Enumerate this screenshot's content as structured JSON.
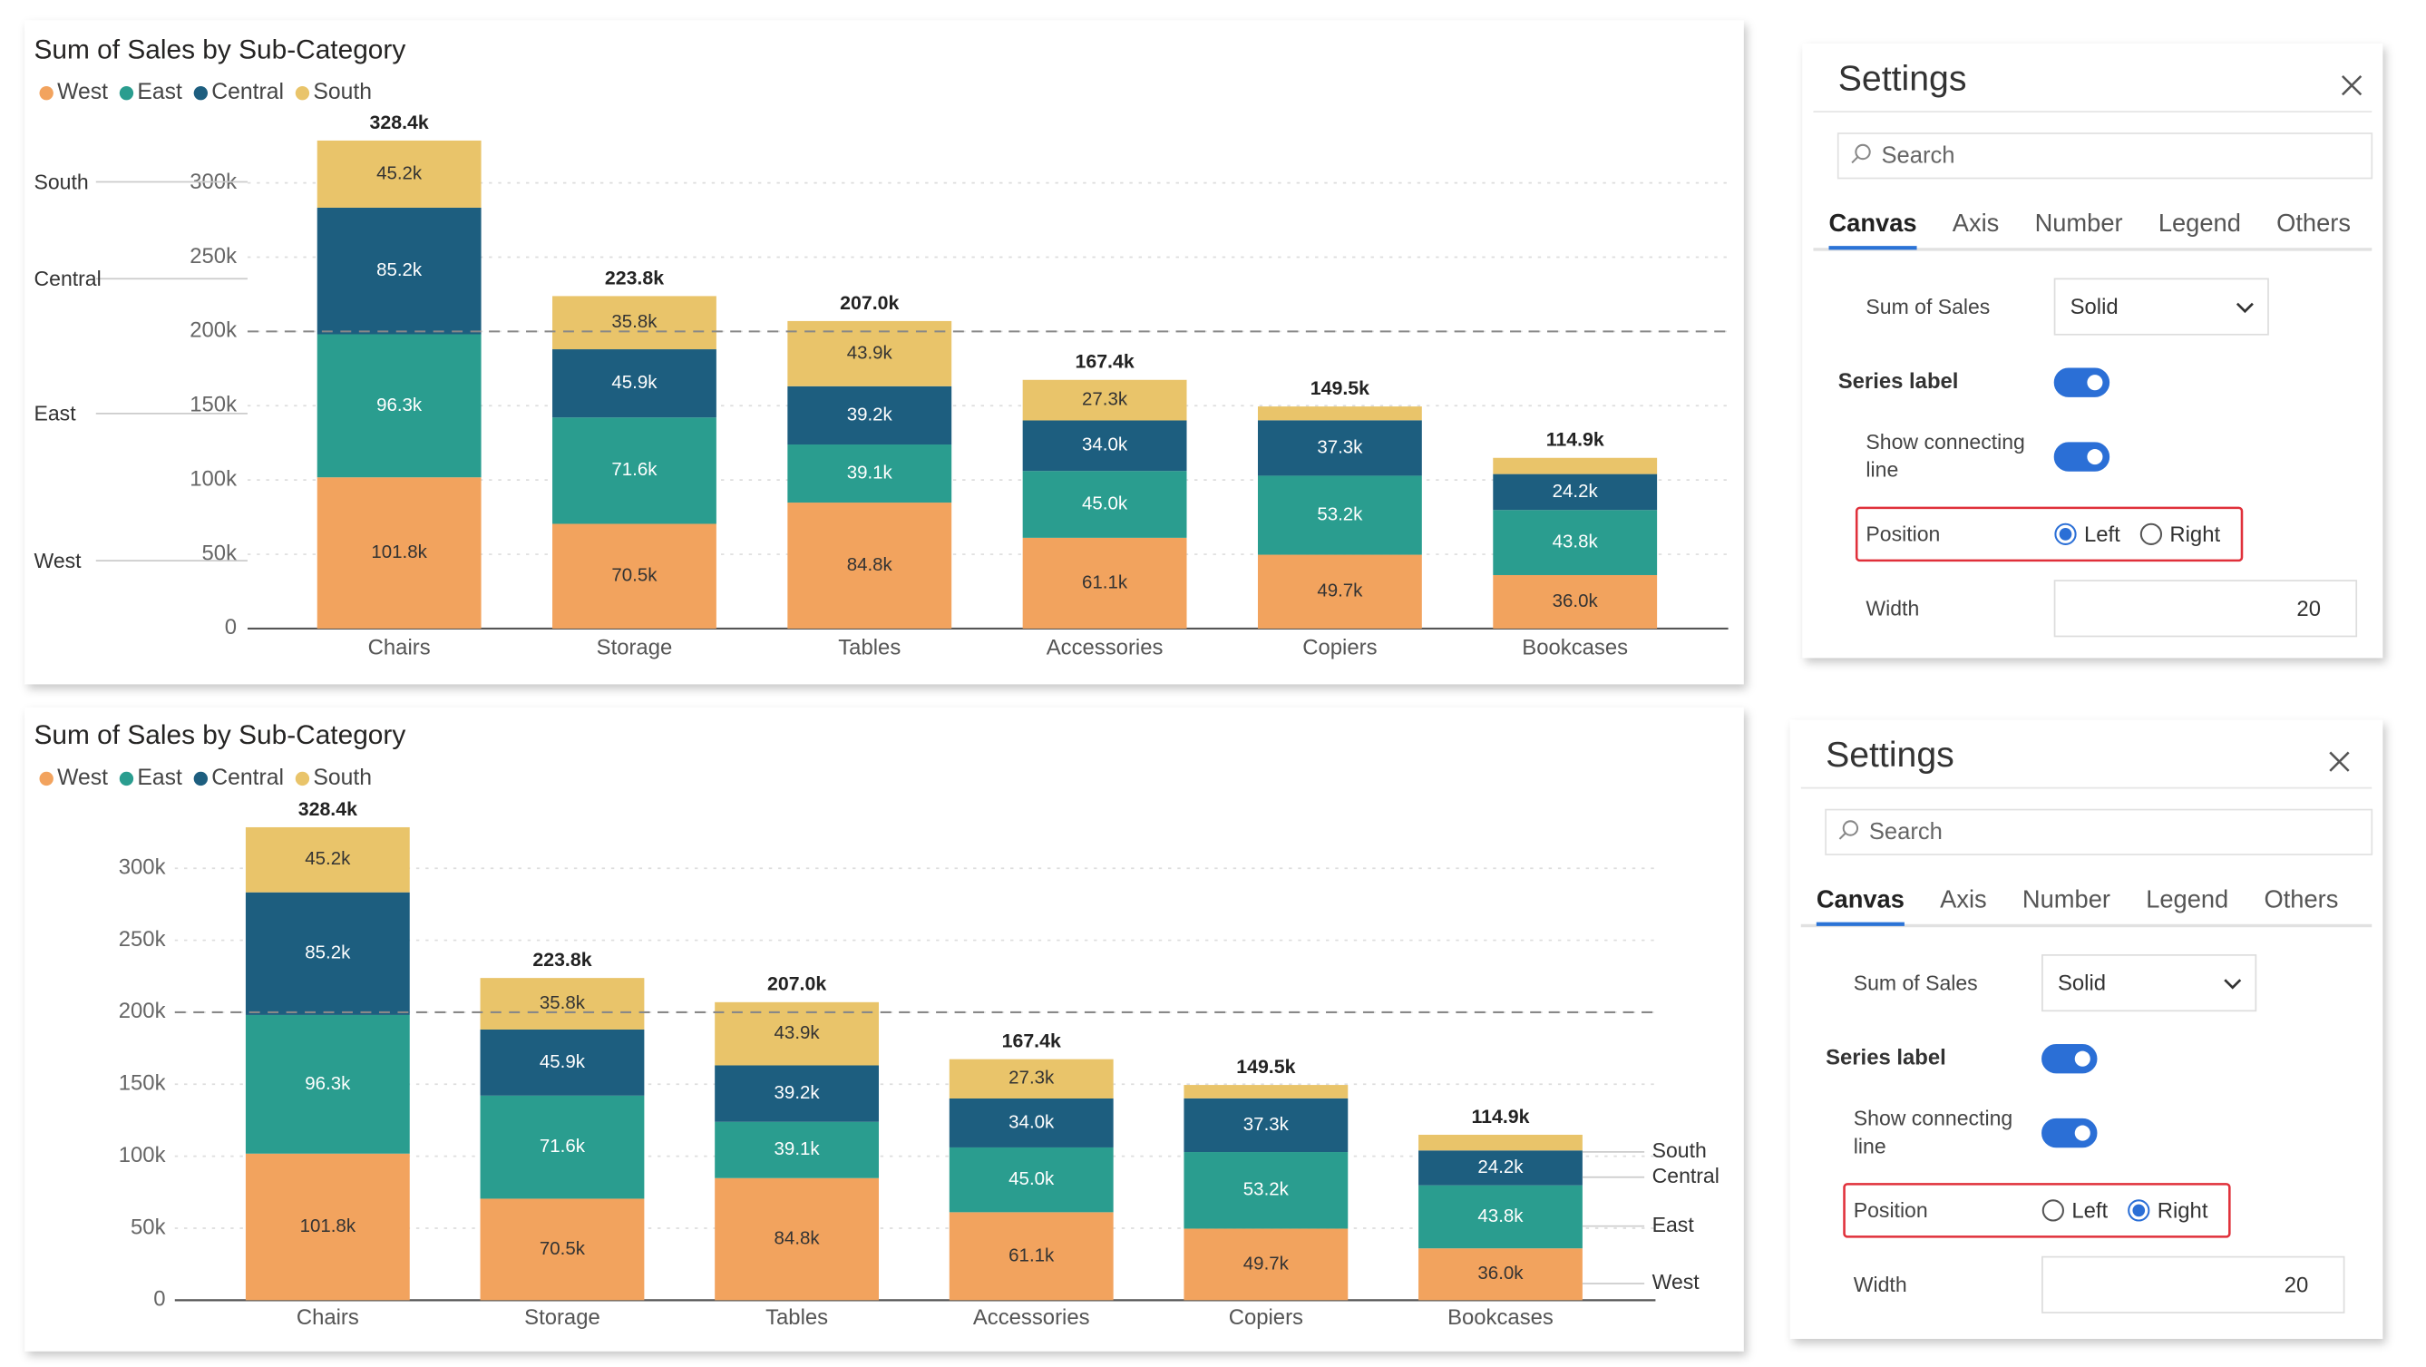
{
  "chart_data": [
    {
      "type": "bar",
      "stacked": true,
      "title": "Sum of Sales by Sub-Category",
      "categories": [
        "Chairs",
        "Storage",
        "Tables",
        "Accessories",
        "Copiers",
        "Bookcases"
      ],
      "series": [
        {
          "name": "West",
          "color": "#f2a35e",
          "values": [
            101800,
            70500,
            84800,
            61100,
            49700,
            36000
          ],
          "value_labels": [
            "101.8k",
            "70.5k",
            "84.8k",
            "61.1k",
            "49.7k",
            "36.0k"
          ]
        },
        {
          "name": "East",
          "color": "#2a9d8f",
          "values": [
            96300,
            71600,
            39100,
            45000,
            53200,
            43800
          ],
          "value_labels": [
            "96.3k",
            "71.6k",
            "39.1k",
            "45.0k",
            "53.2k",
            "43.8k"
          ]
        },
        {
          "name": "Central",
          "color": "#1d5e7f",
          "values": [
            85200,
            45900,
            39200,
            34000,
            37300,
            24200
          ],
          "value_labels": [
            "85.2k",
            "45.9k",
            "39.2k",
            "34.0k",
            "37.3k",
            "24.2k"
          ]
        },
        {
          "name": "South",
          "color": "#e9c46a",
          "values": [
            45200,
            35800,
            43900,
            27300,
            9300,
            10900
          ],
          "value_labels": [
            "45.2k",
            "35.8k",
            "43.9k",
            "27.3k",
            "",
            ""
          ]
        }
      ],
      "totals": [
        328400,
        223800,
        207000,
        167400,
        149500,
        114900
      ],
      "total_labels": [
        "328.4k",
        "223.8k",
        "207.0k",
        "167.4k",
        "149.5k",
        "114.9k"
      ],
      "ylim": [
        0,
        330000
      ],
      "yticks": [
        0,
        {
          "value": 50000,
          "label": "50k"
        },
        {
          "value": 100000,
          "label": "100k"
        },
        {
          "value": 150000,
          "label": "150k"
        },
        {
          "value": 200000,
          "label": "200k"
        },
        {
          "value": 250000,
          "label": "250k"
        },
        {
          "value": 300000,
          "label": "300k"
        }
      ],
      "reference_line": 200000,
      "grid": true,
      "legend": "top-left",
      "series_label_position": "left"
    },
    {
      "type": "bar",
      "stacked": true,
      "title": "Sum of Sales by Sub-Category",
      "categories": [
        "Chairs",
        "Storage",
        "Tables",
        "Accessories",
        "Copiers",
        "Bookcases"
      ],
      "series": [
        {
          "name": "West",
          "color": "#f2a35e",
          "values": [
            101800,
            70500,
            84800,
            61100,
            49700,
            36000
          ],
          "value_labels": [
            "101.8k",
            "70.5k",
            "84.8k",
            "61.1k",
            "49.7k",
            "36.0k"
          ]
        },
        {
          "name": "East",
          "color": "#2a9d8f",
          "values": [
            96300,
            71600,
            39100,
            45000,
            53200,
            43800
          ],
          "value_labels": [
            "96.3k",
            "71.6k",
            "39.1k",
            "45.0k",
            "53.2k",
            "43.8k"
          ]
        },
        {
          "name": "Central",
          "color": "#1d5e7f",
          "values": [
            85200,
            45900,
            39200,
            34000,
            37300,
            24200
          ],
          "value_labels": [
            "85.2k",
            "45.9k",
            "39.2k",
            "34.0k",
            "37.3k",
            "24.2k"
          ]
        },
        {
          "name": "South",
          "color": "#e9c46a",
          "values": [
            45200,
            35800,
            43900,
            27300,
            9300,
            10900
          ],
          "value_labels": [
            "45.2k",
            "35.8k",
            "43.9k",
            "27.3k",
            "",
            ""
          ]
        }
      ],
      "totals": [
        328400,
        223800,
        207000,
        167400,
        149500,
        114900
      ],
      "total_labels": [
        "328.4k",
        "223.8k",
        "207.0k",
        "167.4k",
        "149.5k",
        "114.9k"
      ],
      "ylim": [
        0,
        330000
      ],
      "yticks": [
        0,
        {
          "value": 50000,
          "label": "50k"
        },
        {
          "value": 100000,
          "label": "100k"
        },
        {
          "value": 150000,
          "label": "150k"
        },
        {
          "value": 200000,
          "label": "200k"
        },
        {
          "value": 250000,
          "label": "250k"
        },
        {
          "value": 300000,
          "label": "300k"
        }
      ],
      "reference_line": 200000,
      "grid": true,
      "legend": "top-left",
      "series_label_position": "right"
    }
  ],
  "settings": [
    {
      "title": "Settings",
      "search": "Search",
      "tabs": [
        "Canvas",
        "Axis",
        "Number",
        "Legend",
        "Others"
      ],
      "active_tab": 0,
      "sum_label": "Sum of Sales",
      "dropdown": "Solid",
      "series_label": "Series label",
      "series_label_on": true,
      "connecting_label": "Show connecting line",
      "connecting_on": true,
      "position_label": "Position",
      "position_options": [
        "Left",
        "Right"
      ],
      "position_selected": 0,
      "width_label": "Width",
      "width": "20"
    },
    {
      "title": "Settings",
      "search": "Search",
      "tabs": [
        "Canvas",
        "Axis",
        "Number",
        "Legend",
        "Others"
      ],
      "active_tab": 0,
      "sum_label": "Sum of Sales",
      "dropdown": "Solid",
      "series_label": "Series label",
      "series_label_on": true,
      "connecting_label": "Show connecting line",
      "connecting_on": true,
      "position_label": "Position",
      "position_options": [
        "Left",
        "Right"
      ],
      "position_selected": 1,
      "width_label": "Width",
      "width": "20"
    }
  ]
}
